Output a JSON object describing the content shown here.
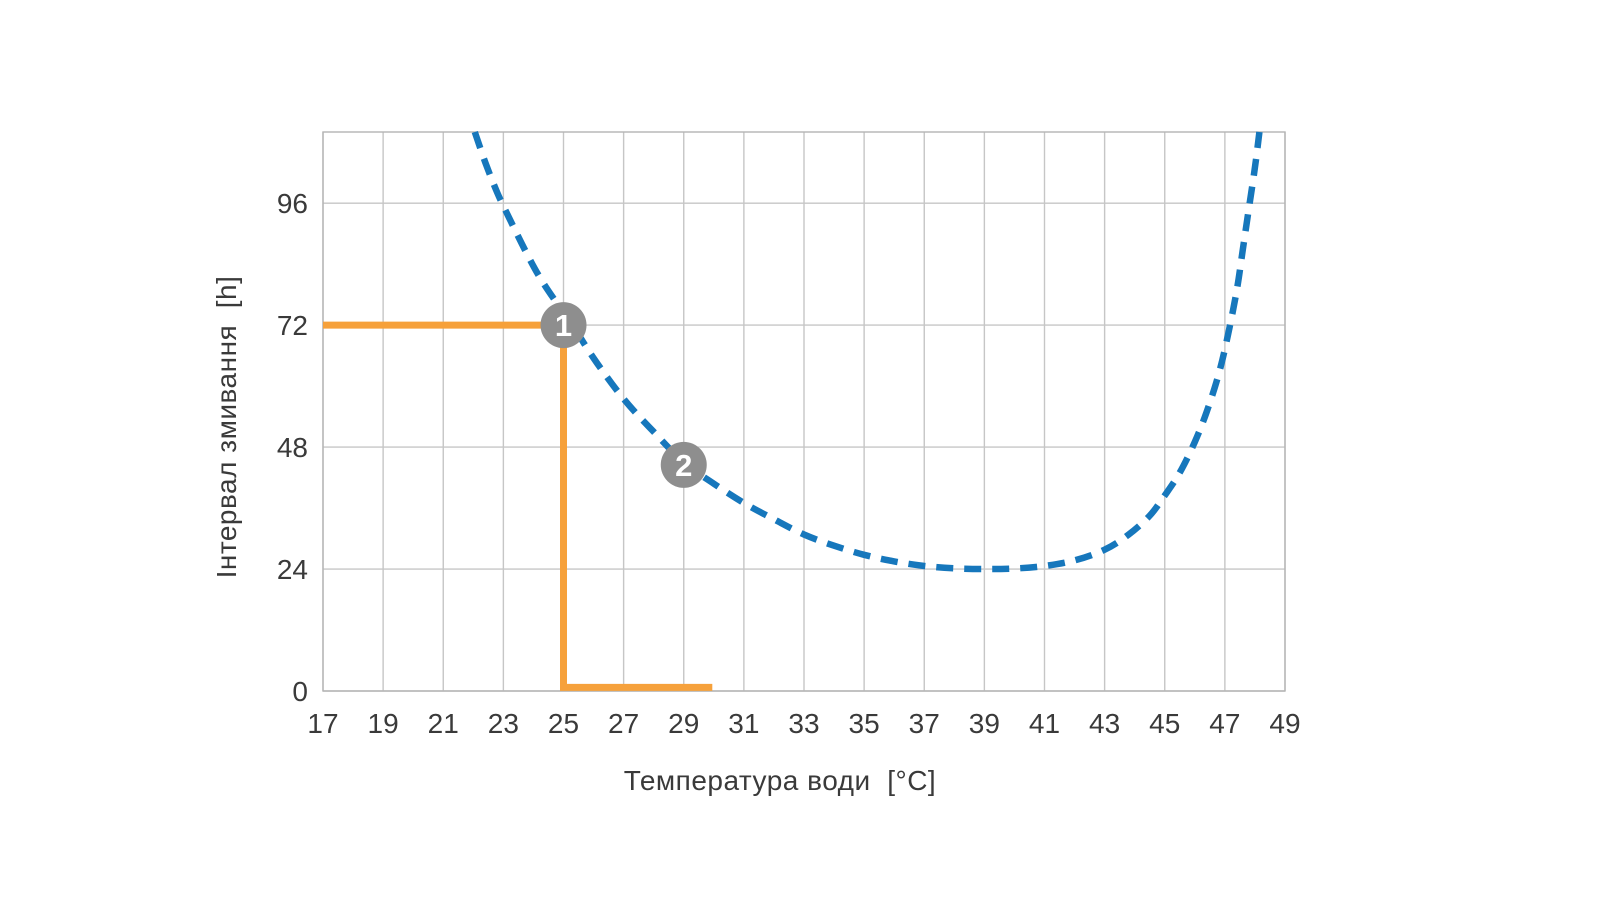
{
  "chart_data": {
    "type": "line",
    "title": "",
    "xlabel": "Температура води  [°C]",
    "ylabel": "Інтервал змивання  [h]",
    "xlim": [
      17,
      49
    ],
    "ylim": [
      0,
      110
    ],
    "x_ticks": [
      17,
      19,
      21,
      23,
      25,
      27,
      29,
      31,
      33,
      35,
      37,
      39,
      41,
      43,
      45,
      47,
      49
    ],
    "y_ticks": [
      0,
      24,
      48,
      72,
      96
    ],
    "grid": true,
    "legend": "none",
    "series": [
      {
        "name": "flush-interval-curve",
        "style": "dashed",
        "color": "#1677BC",
        "points": [
          [
            22.05,
            110
          ],
          [
            22.4,
            104
          ],
          [
            22.8,
            98
          ],
          [
            23.2,
            93
          ],
          [
            23.7,
            87
          ],
          [
            24.2,
            81.5
          ],
          [
            24.7,
            77
          ],
          [
            25.2,
            73
          ],
          [
            26,
            65.5
          ],
          [
            27,
            57.5
          ],
          [
            28,
            51
          ],
          [
            29,
            45
          ],
          [
            30,
            40.8
          ],
          [
            31,
            37
          ],
          [
            32,
            33.8
          ],
          [
            33,
            30.8
          ],
          [
            34,
            28.6
          ],
          [
            35,
            26.8
          ],
          [
            36,
            25.5
          ],
          [
            37,
            24.6
          ],
          [
            38,
            24.15
          ],
          [
            39,
            24
          ],
          [
            40,
            24.1
          ],
          [
            41,
            24.6
          ],
          [
            42,
            25.7
          ],
          [
            43,
            27.8
          ],
          [
            43.8,
            30.8
          ],
          [
            44.5,
            34.5
          ],
          [
            45,
            38.5
          ],
          [
            45.5,
            43
          ],
          [
            46,
            49
          ],
          [
            46.4,
            55
          ],
          [
            46.8,
            62.5
          ],
          [
            47.1,
            70
          ],
          [
            47.4,
            79
          ],
          [
            47.6,
            87
          ],
          [
            47.8,
            95
          ],
          [
            48.0,
            103
          ],
          [
            48.15,
            110
          ]
        ]
      },
      {
        "name": "example-guide-line",
        "style": "solid",
        "color": "#F6A13B",
        "points": [
          [
            17,
            72
          ],
          [
            25,
            72
          ],
          [
            25,
            0.7
          ],
          [
            29.95,
            0.7
          ]
        ]
      }
    ],
    "markers": [
      {
        "label": "1",
        "x": 25,
        "y": 72
      },
      {
        "label": "2",
        "x": 29,
        "y": 44.5
      }
    ],
    "colors": {
      "curve": "#1677BC",
      "guide": "#F6A13B",
      "marker_bg": "#8E8E8E",
      "marker_text": "#FFFFFF",
      "grid": "#c6c6c6",
      "frame": "#b4b4b4",
      "tick_text": "#3a3a3a"
    }
  }
}
